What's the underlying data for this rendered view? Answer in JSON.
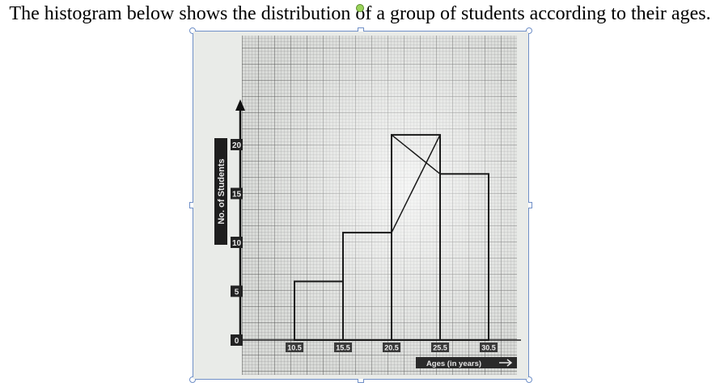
{
  "question": "The histogram below shows the distribution of a group of students according to their ages.",
  "chart_data": {
    "type": "bar",
    "title": "",
    "xlabel": "Ages (in years)",
    "ylabel": "No. of Students",
    "x_ticks": [
      "10.5",
      "15.5",
      "20.5",
      "25.5",
      "30.5"
    ],
    "y_ticks": [
      "0",
      "5",
      "10",
      "15",
      "20"
    ],
    "ylim": [
      0,
      20
    ],
    "grid": true,
    "bins": [
      {
        "from": 10.5,
        "to": 15.5,
        "value": 6
      },
      {
        "from": 15.5,
        "to": 20.5,
        "value": 11
      },
      {
        "from": 20.5,
        "to": 25.5,
        "value": 21
      },
      {
        "from": 25.5,
        "to": 30.5,
        "value": 17
      }
    ]
  }
}
